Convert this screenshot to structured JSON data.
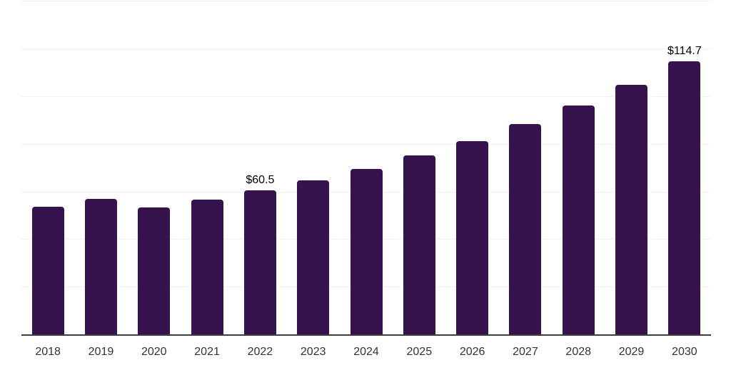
{
  "chart_data": {
    "type": "bar",
    "title": "",
    "xlabel": "",
    "ylabel": "",
    "categories": [
      "2018",
      "2019",
      "2020",
      "2021",
      "2022",
      "2023",
      "2024",
      "2025",
      "2026",
      "2027",
      "2028",
      "2029",
      "2030"
    ],
    "values": [
      53.8,
      57.0,
      53.5,
      56.7,
      60.5,
      64.8,
      69.7,
      75.2,
      81.4,
      88.5,
      96.2,
      104.9,
      114.7
    ],
    "data_labels": {
      "2022": "$60.5",
      "2030": "$114.7"
    },
    "ylim": [
      0,
      140
    ],
    "gridline_step": 20,
    "grid": true,
    "legend": "none",
    "y_axis_ticks_visible": false,
    "colors": {
      "bar": "#36124E",
      "axis_line": "#3d3d3d",
      "gridline": "#f0f0f0",
      "tick_label": "#333333",
      "value_label": "#000000",
      "background": "#ffffff"
    }
  }
}
